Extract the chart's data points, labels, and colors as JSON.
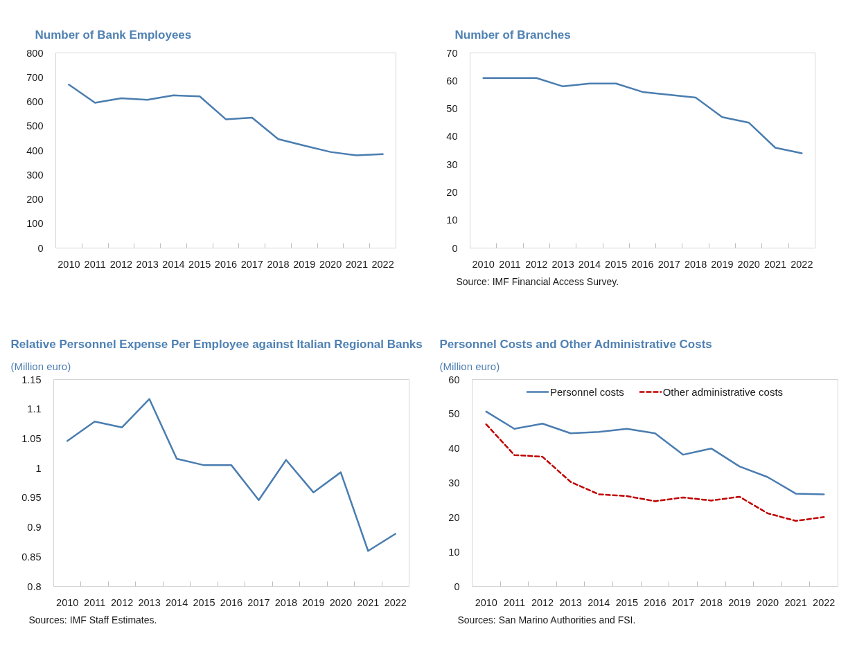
{
  "chart_data": [
    {
      "type": "line",
      "title": "Number of Bank Employees",
      "categories": [
        "2010",
        "2011",
        "2012",
        "2013",
        "2014",
        "2015",
        "2016",
        "2017",
        "2018",
        "2019",
        "2020",
        "2021",
        "2022"
      ],
      "values": [
        670,
        596,
        614,
        608,
        626,
        622,
        528,
        535,
        447,
        420,
        394,
        380,
        385
      ],
      "color": "#4a7db0",
      "ylim": [
        0,
        800
      ],
      "yticks": [
        0,
        100,
        200,
        300,
        400,
        500,
        600,
        700,
        800
      ]
    },
    {
      "type": "line",
      "title": "Number of Branches",
      "categories": [
        "2010",
        "2011",
        "2012",
        "2013",
        "2014",
        "2015",
        "2016",
        "2017",
        "2018",
        "2019",
        "2020",
        "2021",
        "2022"
      ],
      "values": [
        61,
        61,
        61,
        58,
        59,
        59,
        56,
        55,
        54,
        47,
        45,
        36,
        34
      ],
      "color": "#4a7db0",
      "ylim": [
        0,
        70
      ],
      "yticks": [
        0,
        10,
        20,
        30,
        40,
        50,
        60,
        70
      ],
      "annotations": [
        "Source: IMF Financial Access Survey."
      ]
    },
    {
      "type": "line",
      "title": "Relative Personnel Expense Per Employee against Italian Regional Banks",
      "subtitle": "(Million euro)",
      "categories": [
        "2010",
        "2011",
        "2012",
        "2013",
        "2014",
        "2015",
        "2016",
        "2017",
        "2018",
        "2019",
        "2020",
        "2021",
        "2022"
      ],
      "values": [
        1.046,
        1.079,
        1.069,
        1.117,
        1.016,
        1.005,
        1.005,
        0.946,
        1.014,
        0.959,
        0.993,
        0.86,
        0.889
      ],
      "color": "#4a7db0",
      "ylim": [
        0.8,
        1.15
      ],
      "yticks": [
        0.8,
        0.85,
        0.9,
        0.95,
        1,
        1.05,
        1.1,
        1.15
      ],
      "annotations": [
        "Sources: IMF Staff Estimates."
      ]
    },
    {
      "type": "line",
      "title": "Personnel Costs and Other Administrative Costs",
      "subtitle": "(Million euro)",
      "categories": [
        "2010",
        "2011",
        "2012",
        "2013",
        "2014",
        "2015",
        "2016",
        "2017",
        "2018",
        "2019",
        "2020",
        "2021",
        "2022"
      ],
      "series": [
        {
          "name": "Personnel costs",
          "color": "#4a7db0",
          "line_style": "solid",
          "values": [
            50.7,
            45.7,
            47.2,
            44.4,
            44.8,
            45.7,
            44.4,
            38.2,
            40.0,
            34.8,
            31.7,
            26.9,
            26.7
          ]
        },
        {
          "name": "Other administrative costs",
          "color": "#c00000",
          "line_style": "dashed",
          "values": [
            47.0,
            38.1,
            37.6,
            30.3,
            26.7,
            26.2,
            24.7,
            25.8,
            24.9,
            26.0,
            21.2,
            19.0,
            20.1
          ]
        }
      ],
      "ylim": [
        0,
        60
      ],
      "yticks": [
        0,
        10,
        20,
        30,
        40,
        50,
        60
      ],
      "legend": "top",
      "annotations": [
        "Sources: San Marino Authorities and FSI."
      ]
    }
  ]
}
